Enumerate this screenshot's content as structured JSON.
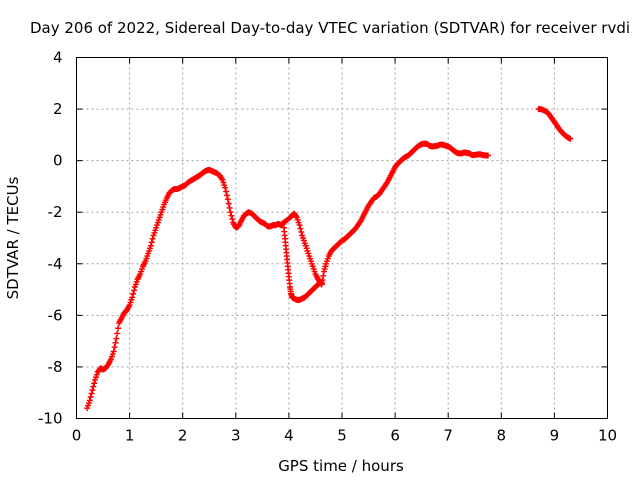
{
  "chart_data": {
    "type": "scatter",
    "title": "Day 206 of 2022, Sidereal Day-to-day VTEC variation (SDTVAR) for receiver rvdi",
    "xlabel": "GPS time / hours",
    "ylabel": "SDTVAR / TECUs",
    "xlim": [
      0,
      10
    ],
    "ylim": [
      -10,
      4
    ],
    "xticks": [
      0,
      1,
      2,
      3,
      4,
      5,
      6,
      7,
      8,
      9,
      10
    ],
    "yticks": [
      4,
      2,
      0,
      -2,
      -4,
      -6,
      -8,
      -10
    ],
    "grid": true,
    "marker": "+",
    "series": [
      {
        "name": "SDTVAR",
        "color": "#ff0000",
        "segments": [
          [
            [
              0.2,
              -9.6
            ],
            [
              0.25,
              -9.3
            ],
            [
              0.3,
              -8.9
            ],
            [
              0.35,
              -8.5
            ],
            [
              0.4,
              -8.2
            ],
            [
              0.45,
              -8.05
            ],
            [
              0.5,
              -8.1
            ],
            [
              0.55,
              -8.05
            ],
            [
              0.6,
              -7.9
            ],
            [
              0.65,
              -7.7
            ],
            [
              0.7,
              -7.4
            ],
            [
              0.75,
              -6.9
            ],
            [
              0.8,
              -6.3
            ],
            [
              0.85,
              -6.1
            ],
            [
              0.9,
              -5.9
            ],
            [
              0.95,
              -5.8
            ],
            [
              1.0,
              -5.6
            ],
            [
              1.05,
              -5.3
            ],
            [
              1.1,
              -4.9
            ],
            [
              1.15,
              -4.6
            ],
            [
              1.2,
              -4.4
            ],
            [
              1.25,
              -4.1
            ],
            [
              1.3,
              -3.9
            ],
            [
              1.35,
              -3.6
            ],
            [
              1.4,
              -3.3
            ],
            [
              1.45,
              -2.9
            ],
            [
              1.5,
              -2.6
            ],
            [
              1.55,
              -2.3
            ],
            [
              1.6,
              -2.0
            ],
            [
              1.65,
              -1.7
            ],
            [
              1.7,
              -1.45
            ],
            [
              1.75,
              -1.25
            ],
            [
              1.8,
              -1.15
            ],
            [
              1.85,
              -1.1
            ],
            [
              1.9,
              -1.1
            ],
            [
              1.95,
              -1.05
            ],
            [
              2.0,
              -1.0
            ],
            [
              2.05,
              -0.95
            ],
            [
              2.1,
              -0.85
            ],
            [
              2.15,
              -0.78
            ],
            [
              2.2,
              -0.72
            ],
            [
              2.25,
              -0.66
            ],
            [
              2.3,
              -0.6
            ],
            [
              2.35,
              -0.52
            ],
            [
              2.4,
              -0.44
            ],
            [
              2.45,
              -0.38
            ],
            [
              2.5,
              -0.36
            ],
            [
              2.55,
              -0.4
            ],
            [
              2.6,
              -0.45
            ],
            [
              2.65,
              -0.5
            ],
            [
              2.7,
              -0.58
            ],
            [
              2.75,
              -0.75
            ],
            [
              2.8,
              -1.05
            ],
            [
              2.85,
              -1.5
            ],
            [
              2.9,
              -2.0
            ],
            [
              2.95,
              -2.4
            ],
            [
              3.0,
              -2.6
            ],
            [
              3.05,
              -2.55
            ],
            [
              3.1,
              -2.35
            ],
            [
              3.15,
              -2.15
            ],
            [
              3.2,
              -2.05
            ],
            [
              3.25,
              -2.0
            ],
            [
              3.3,
              -2.05
            ],
            [
              3.35,
              -2.15
            ],
            [
              3.4,
              -2.25
            ],
            [
              3.45,
              -2.35
            ],
            [
              3.5,
              -2.4
            ],
            [
              3.55,
              -2.45
            ],
            [
              3.6,
              -2.55
            ],
            [
              3.65,
              -2.55
            ],
            [
              3.7,
              -2.5
            ],
            [
              3.75,
              -2.5
            ],
            [
              3.8,
              -2.45
            ],
            [
              3.85,
              -2.5
            ],
            [
              3.9,
              -2.4
            ],
            [
              4.0,
              -2.25
            ],
            [
              4.05,
              -2.15
            ],
            [
              4.1,
              -2.05
            ],
            [
              4.15,
              -2.2
            ],
            [
              4.2,
              -2.5
            ],
            [
              4.25,
              -2.9
            ],
            [
              4.3,
              -3.2
            ],
            [
              4.35,
              -3.5
            ],
            [
              4.4,
              -3.8
            ],
            [
              4.45,
              -4.1
            ],
            [
              4.5,
              -4.4
            ],
            [
              4.55,
              -4.6
            ],
            [
              4.6,
              -4.75
            ],
            [
              4.62,
              -4.8
            ],
            [
              4.66,
              -4.3
            ],
            [
              4.7,
              -4.0
            ],
            [
              4.75,
              -3.7
            ],
            [
              4.8,
              -3.5
            ],
            [
              4.85,
              -3.4
            ],
            [
              4.9,
              -3.3
            ],
            [
              4.95,
              -3.2
            ],
            [
              5.0,
              -3.1
            ],
            [
              5.05,
              -3.05
            ],
            [
              5.1,
              -2.95
            ],
            [
              5.15,
              -2.85
            ],
            [
              5.2,
              -2.75
            ],
            [
              5.25,
              -2.65
            ],
            [
              5.3,
              -2.5
            ],
            [
              5.35,
              -2.35
            ],
            [
              5.4,
              -2.15
            ],
            [
              5.45,
              -1.95
            ],
            [
              5.5,
              -1.75
            ],
            [
              5.55,
              -1.6
            ],
            [
              5.6,
              -1.45
            ],
            [
              5.65,
              -1.4
            ],
            [
              5.7,
              -1.3
            ],
            [
              5.75,
              -1.15
            ],
            [
              5.8,
              -1.0
            ],
            [
              5.85,
              -0.85
            ],
            [
              5.9,
              -0.65
            ],
            [
              5.95,
              -0.45
            ],
            [
              6.0,
              -0.25
            ],
            [
              6.05,
              -0.12
            ],
            [
              6.1,
              -0.02
            ],
            [
              6.15,
              0.08
            ],
            [
              6.2,
              0.15
            ],
            [
              6.25,
              0.2
            ],
            [
              6.3,
              0.3
            ],
            [
              6.35,
              0.4
            ],
            [
              6.4,
              0.5
            ],
            [
              6.45,
              0.58
            ],
            [
              6.5,
              0.64
            ],
            [
              6.55,
              0.66
            ],
            [
              6.6,
              0.65
            ],
            [
              6.65,
              0.58
            ],
            [
              6.7,
              0.55
            ],
            [
              6.75,
              0.56
            ],
            [
              6.8,
              0.58
            ],
            [
              6.85,
              0.62
            ],
            [
              6.9,
              0.62
            ],
            [
              6.95,
              0.58
            ],
            [
              7.0,
              0.55
            ],
            [
              7.05,
              0.48
            ],
            [
              7.1,
              0.4
            ],
            [
              7.15,
              0.32
            ],
            [
              7.2,
              0.28
            ],
            [
              7.25,
              0.28
            ],
            [
              7.3,
              0.32
            ],
            [
              7.35,
              0.3
            ],
            [
              7.4,
              0.28
            ],
            [
              7.45,
              0.22
            ],
            [
              7.5,
              0.22
            ],
            [
              7.55,
              0.24
            ],
            [
              7.6,
              0.25
            ],
            [
              7.65,
              0.22
            ],
            [
              7.7,
              0.2
            ],
            [
              7.75,
              0.2
            ]
          ],
          [
            [
              3.9,
              -2.45
            ],
            [
              3.92,
              -2.9
            ],
            [
              3.94,
              -3.3
            ],
            [
              3.96,
              -3.7
            ],
            [
              3.98,
              -4.1
            ],
            [
              4.0,
              -4.5
            ],
            [
              4.02,
              -4.9
            ],
            [
              4.04,
              -5.15
            ],
            [
              4.06,
              -5.3
            ],
            [
              4.1,
              -5.35
            ],
            [
              4.15,
              -5.4
            ],
            [
              4.2,
              -5.4
            ],
            [
              4.25,
              -5.35
            ],
            [
              4.3,
              -5.3
            ],
            [
              4.35,
              -5.2
            ],
            [
              4.4,
              -5.1
            ],
            [
              4.45,
              -5.0
            ],
            [
              4.5,
              -4.9
            ],
            [
              4.55,
              -4.8
            ],
            [
              4.6,
              -4.7
            ],
            [
              4.62,
              -4.75
            ]
          ],
          [
            [
              8.7,
              2.0
            ],
            [
              8.75,
              2.0
            ],
            [
              8.8,
              1.95
            ],
            [
              8.85,
              1.9
            ],
            [
              8.9,
              1.8
            ],
            [
              8.95,
              1.65
            ],
            [
              9.0,
              1.5
            ],
            [
              9.05,
              1.35
            ],
            [
              9.1,
              1.2
            ],
            [
              9.15,
              1.08
            ],
            [
              9.2,
              0.98
            ],
            [
              9.25,
              0.9
            ],
            [
              9.3,
              0.85
            ]
          ]
        ]
      }
    ]
  }
}
